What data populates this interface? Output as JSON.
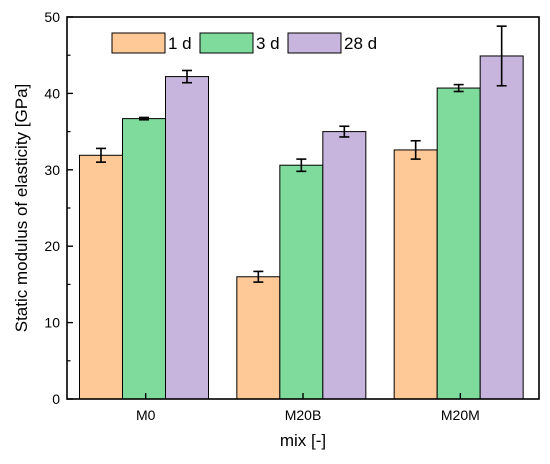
{
  "chart_data": {
    "type": "bar",
    "title": "",
    "xlabel": "mix [-]",
    "ylabel": "Static modulus of elasticity [GPa]",
    "ylim": [
      0,
      50
    ],
    "yticks": [
      "0",
      "10",
      "20",
      "30",
      "40",
      "50"
    ],
    "categories": [
      "M0",
      "M20B",
      "M20M"
    ],
    "grid": false,
    "legend_position": "top",
    "series": [
      {
        "name": "1 d",
        "color": "#ffc997",
        "values": [
          31.9,
          16.0,
          32.6
        ],
        "errors": [
          0.9,
          0.7,
          1.2
        ]
      },
      {
        "name": "3 d",
        "color": "#7fdb9b",
        "values": [
          36.7,
          30.6,
          40.7
        ],
        "errors": [
          0.15,
          0.8,
          0.45
        ]
      },
      {
        "name": "28 d",
        "color": "#c8b5dd",
        "values": [
          42.2,
          35.0,
          44.9
        ],
        "errors": [
          0.8,
          0.7,
          3.9
        ]
      }
    ]
  }
}
